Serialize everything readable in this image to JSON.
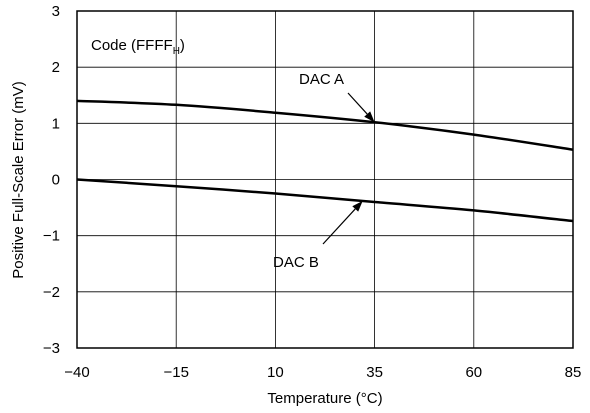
{
  "chart_data": {
    "type": "line",
    "xlabel": "Temperature (°C)",
    "ylabel": "Positive Full-Scale Error (mV)",
    "xlim": [
      -40,
      85
    ],
    "ylim": [
      -3,
      3
    ],
    "xticks": [
      -40,
      -15,
      10,
      35,
      60,
      85
    ],
    "yticks": [
      -3,
      -2,
      -1,
      0,
      1,
      2,
      3
    ],
    "xtick_labels": [
      "−40",
      "−15",
      "10",
      "35",
      "60",
      "85"
    ],
    "ytick_labels": [
      "−3",
      "−2",
      "−1",
      "0",
      "1",
      "2",
      "3"
    ],
    "grid": true,
    "legend": "none",
    "condition": {
      "prefix": "Code (FFFF",
      "subscript": "H",
      "suffix": ")"
    },
    "series": [
      {
        "name": "DAC A",
        "x": [
          -40,
          -15,
          10,
          35,
          60,
          85
        ],
        "values": [
          1.4,
          1.33,
          1.19,
          1.02,
          0.8,
          0.53
        ]
      },
      {
        "name": "DAC B",
        "x": [
          -40,
          -15,
          10,
          35,
          60,
          85
        ],
        "values": [
          0.0,
          -0.12,
          -0.25,
          -0.4,
          -0.55,
          -0.74
        ]
      }
    ],
    "annotations": [
      {
        "text": "DAC A",
        "series": 0,
        "points_to": [
          35,
          1.02
        ]
      },
      {
        "text": "DAC B",
        "series": 1,
        "points_to": [
          32,
          -0.38
        ]
      }
    ]
  }
}
